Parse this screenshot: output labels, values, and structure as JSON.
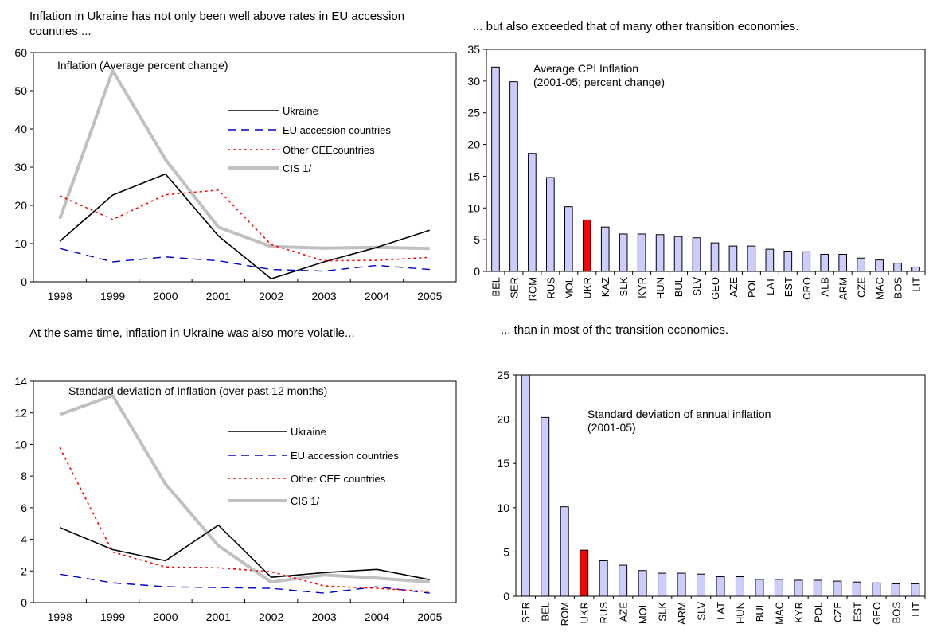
{
  "panels": {
    "top_left": "Inflation in Ukraine has not only been well above rates in EU accession countries  ...",
    "top_right": "... but also exceeded that of many other transition economies.",
    "bottom_left": "At the same time, inflation in Ukraine was also more volatile...",
    "bottom_right": "... than in most of the transition economies."
  },
  "chart_data": [
    {
      "id": "c1",
      "type": "line",
      "title": "Inflation (Average percent change)",
      "x": [
        "1998",
        "1999",
        "2000",
        "2001",
        "2002",
        "2003",
        "2004",
        "2005"
      ],
      "ylim": [
        0,
        60
      ],
      "yticks": [
        "0",
        "10",
        "20",
        "30",
        "40",
        "50",
        "60"
      ],
      "series": [
        {
          "name": "Ukraine",
          "color": "#000000",
          "dash": "",
          "width": 1.6,
          "values": [
            10.6,
            22.7,
            28.2,
            12.0,
            0.8,
            5.2,
            9.0,
            13.5
          ]
        },
        {
          "name": "EU accession countries",
          "color": "#0000cc",
          "dash": "10,7",
          "width": 1.4,
          "values": [
            8.7,
            5.2,
            6.5,
            5.5,
            3.2,
            2.8,
            4.3,
            3.2
          ]
        },
        {
          "name": "Other CEEcountries",
          "color": "#ff0000",
          "dash": "3,4",
          "width": 1.6,
          "values": [
            22.5,
            16.3,
            22.8,
            24.0,
            9.7,
            5.5,
            5.6,
            6.4
          ]
        },
        {
          "name": "CIS 1/",
          "color": "#c0c0c0",
          "dash": "",
          "width": 4,
          "values": [
            16.5,
            55.3,
            32.0,
            14.3,
            9.2,
            8.8,
            9.0,
            8.7
          ]
        }
      ]
    },
    {
      "id": "c2",
      "type": "bar",
      "title": "Average CPI Inflation\n(2001-05; percent change)",
      "categories": [
        "BEL",
        "SER",
        "ROM",
        "RUS",
        "MOL",
        "UKR",
        "KAZ",
        "SLK",
        "KYR",
        "HUN",
        "BUL",
        "SLV",
        "GEO",
        "AZE",
        "POL",
        "LAT",
        "EST",
        "CRO",
        "ALB",
        "ARM",
        "CZE",
        "MAC",
        "BOS",
        "LIT"
      ],
      "values": [
        32.2,
        29.9,
        18.6,
        14.8,
        10.2,
        8.1,
        7.0,
        5.9,
        5.9,
        5.8,
        5.5,
        5.3,
        4.5,
        4.0,
        4.0,
        3.5,
        3.2,
        3.1,
        2.7,
        2.7,
        2.1,
        1.8,
        1.3,
        0.7
      ],
      "highlight": "UKR",
      "ylim": [
        0,
        35
      ],
      "yticks": [
        "0",
        "5",
        "10",
        "15",
        "20",
        "25",
        "30",
        "35"
      ],
      "colors": {
        "bar": "#ccccff",
        "highlight": "#ff0000"
      }
    },
    {
      "id": "c3",
      "type": "line",
      "title": "Standard deviation of Inflation (over past 12 months)",
      "x": [
        "1998",
        "1999",
        "2000",
        "2001",
        "2002",
        "2003",
        "2004",
        "2005"
      ],
      "ylim": [
        0,
        14
      ],
      "yticks": [
        "0",
        "2",
        "4",
        "6",
        "8",
        "10",
        "12",
        "14"
      ],
      "series": [
        {
          "name": "Ukraine",
          "color": "#000000",
          "dash": "",
          "width": 1.6,
          "values": [
            4.75,
            3.35,
            2.65,
            4.9,
            1.6,
            1.9,
            2.1,
            1.45
          ]
        },
        {
          "name": "EU accession countries",
          "color": "#0000cc",
          "dash": "10,7",
          "width": 1.4,
          "values": [
            1.8,
            1.25,
            1.0,
            0.95,
            0.9,
            0.6,
            1.0,
            0.6
          ]
        },
        {
          "name": "Other CEE countries",
          "color": "#ff0000",
          "dash": "3,4",
          "width": 1.6,
          "values": [
            9.8,
            3.2,
            2.25,
            2.2,
            1.95,
            1.05,
            0.9,
            0.7
          ]
        },
        {
          "name": "CIS 1/",
          "color": "#c0c0c0",
          "dash": "",
          "width": 4,
          "values": [
            11.9,
            13.1,
            7.5,
            3.6,
            1.3,
            1.75,
            1.55,
            1.3
          ]
        }
      ]
    },
    {
      "id": "c4",
      "type": "bar",
      "title": "Standard deviation of annual inflation\n(2001-05)",
      "categories": [
        "SER",
        "BEL",
        "ROM",
        "UKR",
        "RUS",
        "AZE",
        "MOL",
        "SLK",
        "ARM",
        "SLV",
        "LAT",
        "HUN",
        "BUL",
        "MAC",
        "KYR",
        "POL",
        "CZE",
        "EST",
        "GEO",
        "BOS",
        "LIT"
      ],
      "values": [
        26.0,
        20.2,
        10.1,
        5.2,
        4.0,
        3.5,
        2.9,
        2.6,
        2.6,
        2.5,
        2.2,
        2.2,
        1.9,
        1.9,
        1.8,
        1.8,
        1.7,
        1.6,
        1.5,
        1.4,
        1.4
      ],
      "highlight": "UKR",
      "ylim": [
        0,
        25
      ],
      "yticks": [
        "0",
        "5",
        "10",
        "15",
        "20",
        "25"
      ],
      "colors": {
        "bar": "#ccccff",
        "highlight": "#ff0000"
      }
    }
  ]
}
